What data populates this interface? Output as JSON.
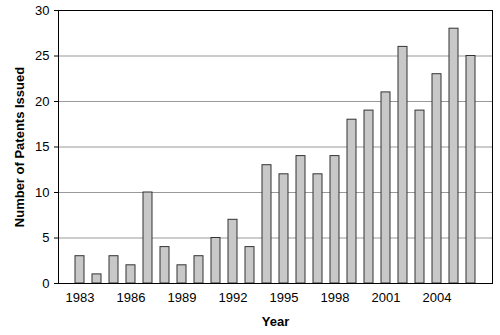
{
  "chart_data": {
    "type": "bar",
    "x_label": "Year",
    "y_label": "Number of Patents Issued",
    "categories": [
      "1983",
      null,
      null,
      "1986",
      null,
      null,
      "1989",
      null,
      null,
      "1992",
      null,
      null,
      "1995",
      null,
      null,
      "1998",
      null,
      null,
      "2001",
      null,
      null,
      "2004",
      null,
      null
    ],
    "values": [
      3,
      1,
      3,
      2,
      10,
      4,
      2,
      3,
      5,
      7,
      4,
      13,
      12,
      14,
      12,
      14,
      18,
      19,
      21,
      26,
      19,
      23,
      28,
      25
    ],
    "color": "#c8c8c8",
    "ylim": [
      0,
      30
    ],
    "yticks": [
      0,
      5,
      10,
      15,
      20,
      25,
      30
    ],
    "grid": true
  }
}
